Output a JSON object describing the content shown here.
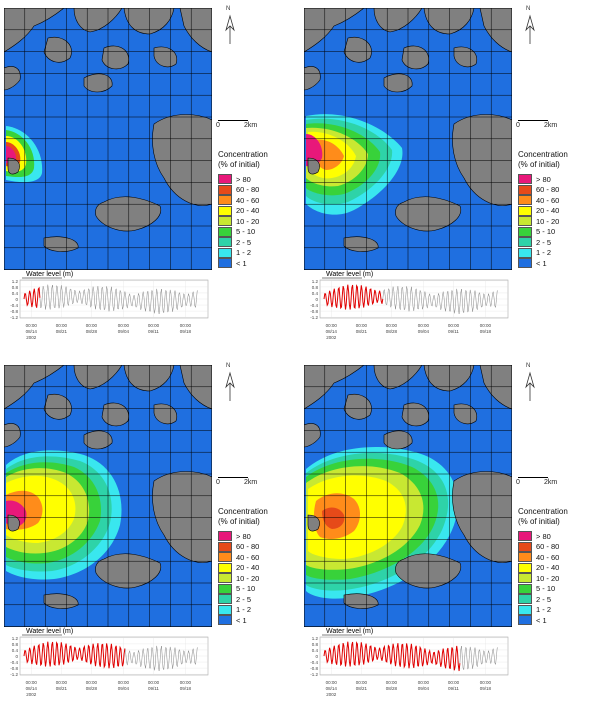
{
  "colors": {
    "water": "#1f6fe0",
    "land": "#808080",
    "grid": "#000000",
    "river": "#000000"
  },
  "legend": {
    "title_line1": "Concentration",
    "title_line2": "(% of initial)",
    "items": [
      {
        "label": "> 80",
        "color": "#e8187a"
      },
      {
        "label": "60 - 80",
        "color": "#e64a19"
      },
      {
        "label": "40 - 60",
        "color": "#ff8c1a"
      },
      {
        "label": "20 - 40",
        "color": "#ffff00"
      },
      {
        "label": "10 - 20",
        "color": "#c8e832"
      },
      {
        "label": "5 - 10",
        "color": "#38d23a"
      },
      {
        "label": "2 - 5",
        "color": "#2ed3a8"
      },
      {
        "label": "1 - 2",
        "color": "#39e7ef"
      },
      {
        "label": "< 1",
        "color": "#1f6fe0"
      }
    ]
  },
  "scale_bar": {
    "start": "0",
    "end": "2km"
  },
  "north_label": "N",
  "water_level": {
    "title": "Water level (m)",
    "y_ticks": [
      "1.2",
      "0.8",
      "0.4",
      "0",
      "-0.4",
      "-0.8",
      "-1.2"
    ],
    "x_time_labels": [
      "00:00",
      "00:00",
      "00:00",
      "00:00",
      "00:00",
      "00:00"
    ],
    "x_date_labels": [
      "08/14",
      "08/21",
      "08/28",
      "09/04",
      "09/11",
      "09/18"
    ],
    "year_label": "2002"
  },
  "panels": [
    {
      "name": "panel-1",
      "elapsed_fraction": 0.09
    },
    {
      "name": "panel-2",
      "elapsed_fraction": 0.34
    },
    {
      "name": "panel-3",
      "elapsed_fraction": 0.58
    },
    {
      "name": "panel-4",
      "elapsed_fraction": 0.78
    }
  ]
}
